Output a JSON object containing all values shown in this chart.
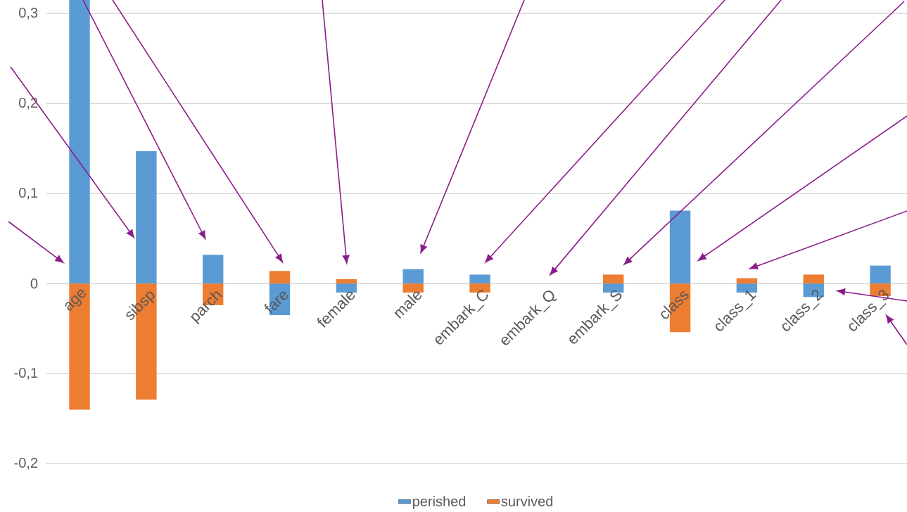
{
  "chart_data": {
    "type": "bar",
    "stacked": true,
    "grid": "y",
    "legend": "bottom",
    "categories": [
      "age",
      "sibsp",
      "parch",
      "fare",
      "female",
      "male",
      "embark_C",
      "embark_Q",
      "embark_S",
      "class",
      "class_1",
      "class_2",
      "class_3"
    ],
    "series": [
      {
        "name": "perished",
        "color": "#5b9bd5",
        "values": [
          0.315,
          0.147,
          0.032,
          -0.035,
          -0.01,
          0.016,
          0.01,
          0,
          -0.01,
          0.081,
          -0.01,
          -0.015,
          0.02
        ]
      },
      {
        "name": "survived",
        "color": "#ed7d31",
        "values": [
          -0.14,
          -0.129,
          -0.024,
          0.014,
          0.005,
          -0.01,
          -0.01,
          0,
          0.01,
          -0.054,
          0.006,
          0.01,
          -0.014
        ]
      }
    ],
    "ylim": [
      -0.2,
      0.315
    ],
    "yticks": [
      {
        "value": -0.2,
        "label": "-0,2"
      },
      {
        "value": -0.1,
        "label": "-0,1"
      },
      0,
      {
        "value": 0.1,
        "label": "0,1"
      },
      {
        "value": 0.2,
        "label": "0,2"
      },
      {
        "value": 0.3,
        "label": "0,3"
      }
    ]
  }
}
